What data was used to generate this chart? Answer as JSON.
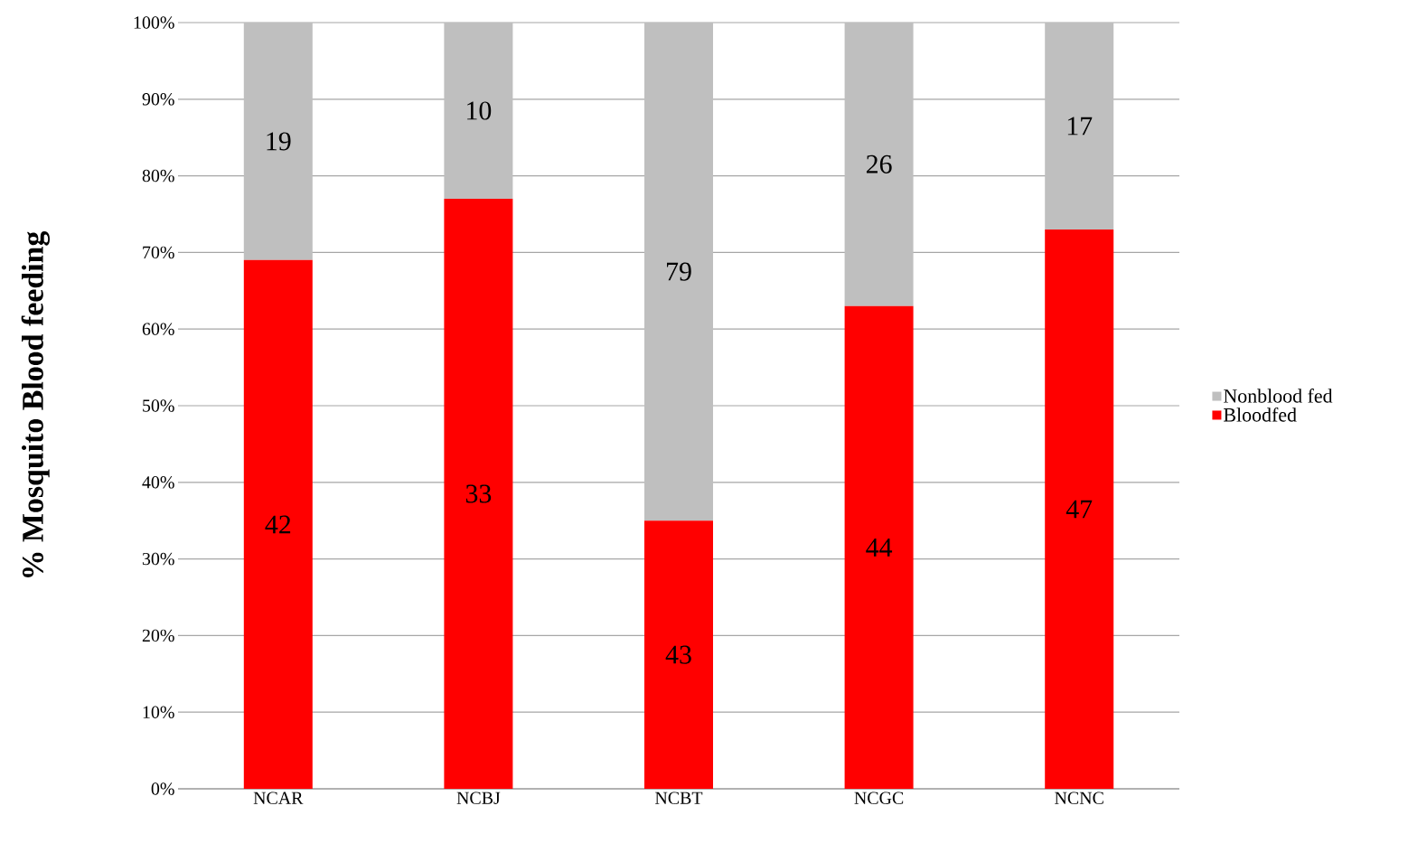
{
  "chart_data": {
    "type": "bar",
    "stacked": true,
    "ylabel": "% Mosquito Blood feeding",
    "categories": [
      "NCAR",
      "NCBJ",
      "NCBT",
      "NCGC",
      "NCNC"
    ],
    "series": [
      {
        "name": "Bloodfed",
        "color": "#ff0000",
        "values": [
          69,
          77,
          35,
          63,
          73
        ]
      },
      {
        "name": "Nonblood fed",
        "color": "#bfbfbf",
        "values": [
          31,
          23,
          65,
          37,
          27
        ]
      }
    ],
    "annotations": [
      "42",
      "33",
      "43",
      "44",
      "47",
      "19",
      "10",
      "79",
      "26",
      "17"
    ],
    "ylim": [
      0,
      100
    ],
    "yticks": [
      {
        "value": 0,
        "label": "0%"
      },
      {
        "value": 10,
        "label": "10%"
      },
      {
        "value": 20,
        "label": "20%"
      },
      {
        "value": 30,
        "label": "30%"
      },
      {
        "value": 40,
        "label": "40%"
      },
      {
        "value": 50,
        "label": "50%"
      },
      {
        "value": 60,
        "label": "60%"
      },
      {
        "value": 70,
        "label": "70%"
      },
      {
        "value": 80,
        "label": "80%"
      },
      {
        "value": 90,
        "label": "90%"
      },
      {
        "value": 100,
        "label": "100%"
      }
    ],
    "grid": "y",
    "legend": "right"
  }
}
